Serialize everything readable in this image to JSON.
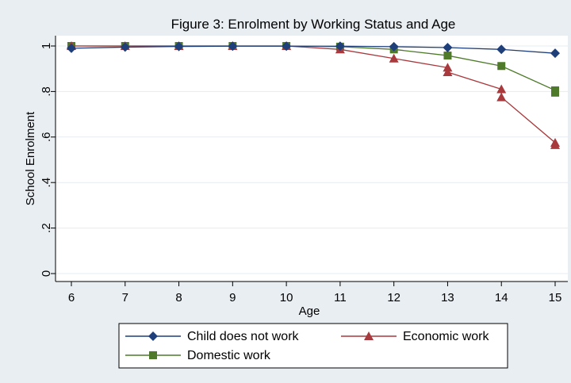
{
  "chart_data": {
    "type": "line",
    "title": "Figure 3: Enrolment by Working Status and Age",
    "xlabel": "Age",
    "ylabel": "School Enrolment",
    "x": [
      6,
      7,
      8,
      9,
      10,
      11,
      12,
      13,
      14,
      15
    ],
    "xlim": [
      6,
      15
    ],
    "ylim": [
      0,
      1
    ],
    "y_ticks": [
      0,
      0.2,
      0.4,
      0.6,
      0.8,
      1
    ],
    "y_tick_labels": [
      "0",
      ".2",
      ".4",
      ".6",
      ".8",
      "1"
    ],
    "grid": true,
    "legend_position": "bottom",
    "series": [
      {
        "name": "Child does not work",
        "marker": "diamond",
        "color": "#1f3f7a",
        "points": [
          [
            6,
            0.99
          ],
          [
            7,
            0.995
          ],
          [
            8,
            0.998
          ],
          [
            9,
            0.999
          ],
          [
            10,
            0.999
          ],
          [
            11,
            0.999
          ],
          [
            12,
            0.997
          ],
          [
            13,
            0.993
          ],
          [
            14,
            0.985
          ],
          [
            15,
            0.968
          ]
        ]
      },
      {
        "name": "Economic work",
        "marker": "triangle",
        "color": "#a8393c",
        "points": [
          [
            6,
            1.0
          ],
          [
            7,
            1.0
          ],
          [
            8,
            1.0
          ],
          [
            9,
            1.0
          ],
          [
            10,
            1.0
          ],
          [
            11,
            0.985
          ],
          [
            12,
            0.945
          ],
          [
            13,
            0.905
          ],
          [
            13,
            0.885
          ],
          [
            14,
            0.81
          ],
          [
            14,
            0.775
          ],
          [
            15,
            0.575
          ],
          [
            15,
            0.565
          ]
        ]
      },
      {
        "name": "Domestic work",
        "marker": "square",
        "color": "#4e7a2a",
        "points": [
          [
            6,
            1.0
          ],
          [
            7,
            1.0
          ],
          [
            8,
            1.0
          ],
          [
            9,
            1.0
          ],
          [
            10,
            1.0
          ],
          [
            11,
            0.997
          ],
          [
            12,
            0.985
          ],
          [
            13,
            0.958
          ],
          [
            14,
            0.912
          ],
          [
            15,
            0.805
          ],
          [
            15,
            0.795
          ]
        ]
      }
    ]
  }
}
